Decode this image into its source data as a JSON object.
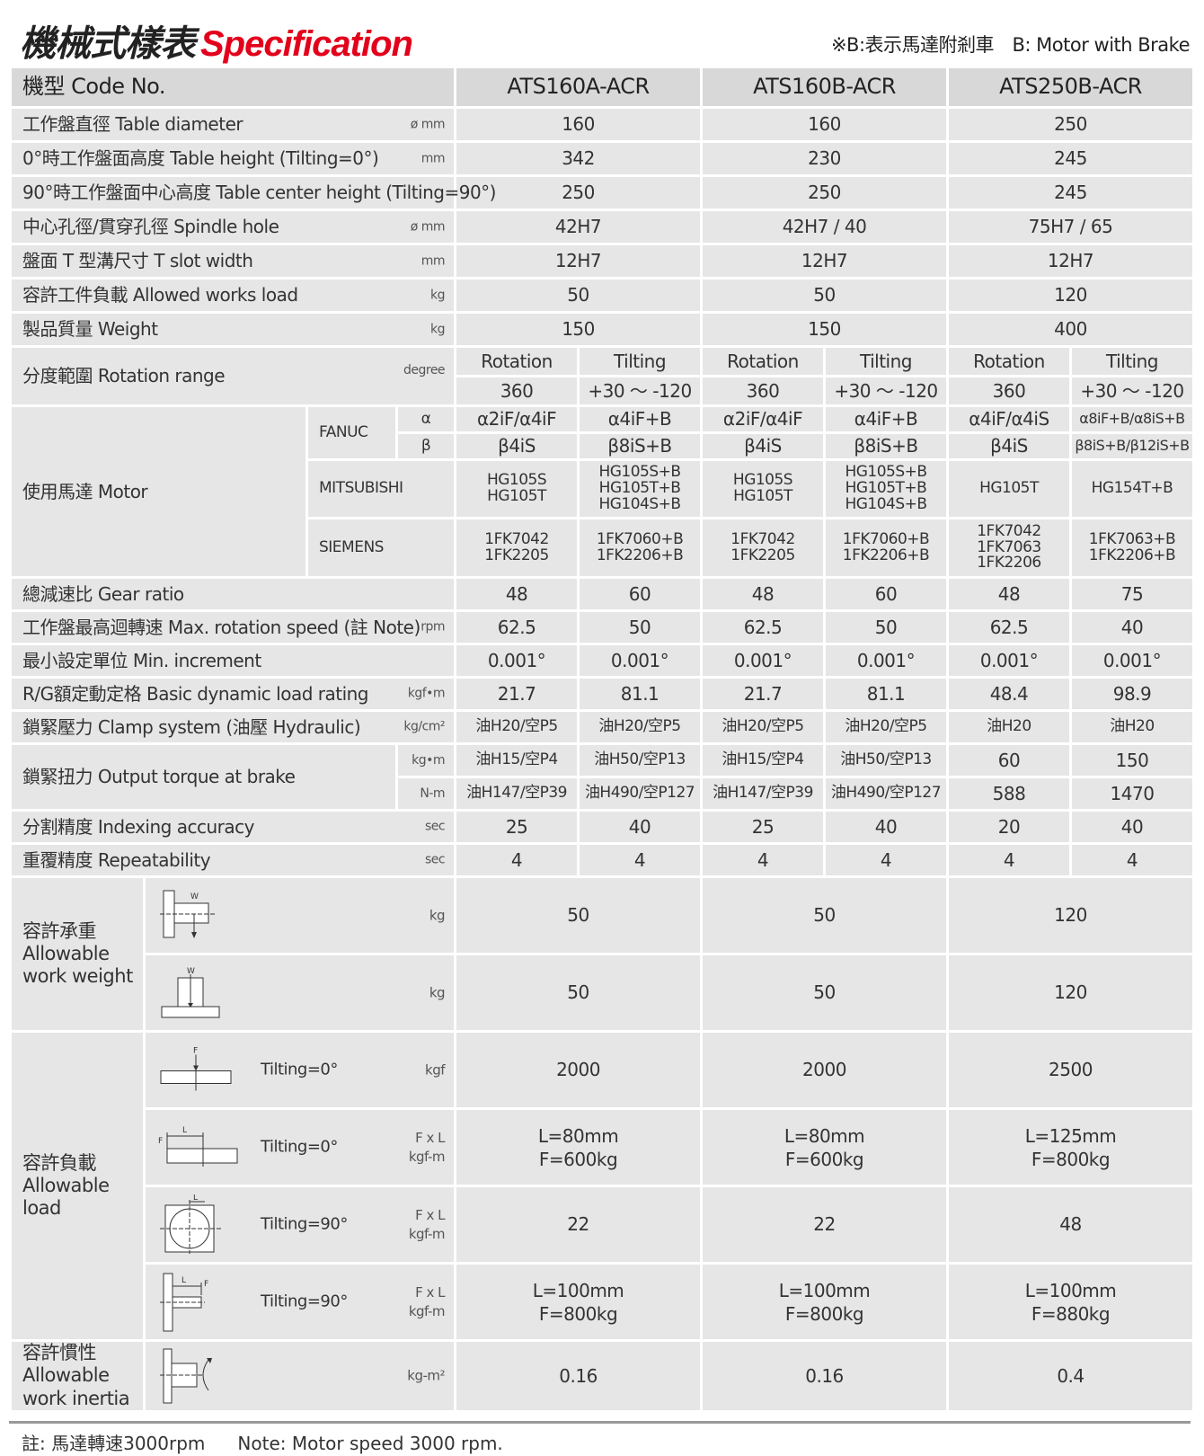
{
  "title": {
    "zh": "機械式樣表",
    "en": "Specification"
  },
  "brake_note": "※B:表示馬達附剎車　B: Motor with Brake",
  "colors": {
    "accent": "#e3001b",
    "cell_bg": "#e6e6e7",
    "header_bg": "#d8d8d9"
  },
  "header": {
    "label": "機型 Code No.",
    "models": [
      "ATS160A-ACR",
      "ATS160B-ACR",
      "ATS250B-ACR"
    ]
  },
  "rows": [
    {
      "label": "工作盤直徑 Table diameter",
      "unit": "ø mm",
      "values": [
        "160",
        "160",
        "250"
      ]
    },
    {
      "label": "0°時工作盤面高度 Table height (Tilting=0°)",
      "unit": "mm",
      "values": [
        "342",
        "230",
        "245"
      ]
    },
    {
      "label": "90°時工作盤面中心高度 Table center height (Tilting=90°)",
      "unit": "",
      "values": [
        "250",
        "250",
        "245"
      ]
    },
    {
      "label": "中心孔徑/貫穿孔徑 Spindle hole",
      "unit": "ø mm",
      "values": [
        "42H7",
        "42H7 / 40",
        "75H7 / 65"
      ]
    },
    {
      "label": "盤面 T 型溝尺寸 T slot width",
      "unit": "mm",
      "values": [
        "12H7",
        "12H7",
        "12H7"
      ]
    },
    {
      "label": "容許工件負載 Allowed works load",
      "unit": "kg",
      "values": [
        "50",
        "50",
        "120"
      ]
    },
    {
      "label": "製品質量 Weight",
      "unit": "kg",
      "values": [
        "150",
        "150",
        "400"
      ]
    }
  ],
  "rotation": {
    "label": "分度範圍 Rotation range",
    "unit": "degree",
    "heads": [
      "Rotation",
      "Tilting",
      "Rotation",
      "Tilting",
      "Rotation",
      "Tilting"
    ],
    "values": [
      "360",
      "+30 ～ -120",
      "360",
      "+30 ～ -120",
      "360",
      "+30 ～ -120"
    ]
  },
  "motor": {
    "label": "使用馬達  Motor",
    "fanuc": {
      "brand": "FANUC",
      "alpha": "α",
      "beta": "β",
      "alpha_values": [
        "α2iF/α4iF",
        "α4iF+B",
        "α2iF/α4iF",
        "α4iF+B",
        "α4iF/α4iS",
        "α8iF+B/α8iS+B"
      ],
      "beta_values": [
        "β4iS",
        "β8iS+B",
        "β4iS",
        "β8iS+B",
        "β4iS",
        "β8iS+B/β12iS+B"
      ]
    },
    "mitsubishi": {
      "brand": "MITSUBISHI",
      "values": [
        [
          "HG105S",
          "HG105T"
        ],
        [
          "HG105S+B",
          "HG105T+B",
          "HG104S+B"
        ],
        [
          "HG105S",
          "HG105T"
        ],
        [
          "HG105S+B",
          "HG105T+B",
          "HG104S+B"
        ],
        [
          "HG105T"
        ],
        [
          "HG154T+B"
        ]
      ]
    },
    "siemens": {
      "brand": "SIEMENS",
      "values": [
        [
          "1FK7042",
          "1FK2205"
        ],
        [
          "1FK7060+B",
          "1FK2206+B"
        ],
        [
          "1FK7042",
          "1FK2205"
        ],
        [
          "1FK7060+B",
          "1FK2206+B"
        ],
        [
          "1FK7042",
          "1FK7063",
          "1FK2206"
        ],
        [
          "1FK7063+B",
          "1FK2206+B"
        ]
      ]
    }
  },
  "rows6": [
    {
      "label": "總減速比 Gear ratio",
      "unit": "",
      "values": [
        "48",
        "60",
        "48",
        "60",
        "48",
        "75"
      ]
    },
    {
      "label": "工作盤最高迴轉速 Max. rotation speed (註 Note)",
      "unit": "rpm",
      "values": [
        "62.5",
        "50",
        "62.5",
        "50",
        "62.5",
        "40"
      ]
    },
    {
      "label": "最小設定單位 Min. increment",
      "unit": "",
      "values": [
        "0.001°",
        "0.001°",
        "0.001°",
        "0.001°",
        "0.001°",
        "0.001°"
      ]
    },
    {
      "label": "R/G額定動定格 Basic dynamic load rating",
      "unit": "kgf•m",
      "values": [
        "21.7",
        "81.1",
        "21.7",
        "81.1",
        "48.4",
        "98.9"
      ]
    },
    {
      "label": "鎖緊壓力 Clamp system (油壓 Hydraulic)",
      "unit": "kg/cm²",
      "values": [
        "油H20/空P5",
        "油H20/空P5",
        "油H20/空P5",
        "油H20/空P5",
        "油H20",
        "油H20"
      ]
    }
  ],
  "torque": {
    "label": "鎖緊扭力 Output torque at brake",
    "unit1": "kg•m",
    "unit2": "N-m",
    "values1": [
      "油H15/空P4",
      "油H50/空P13",
      "油H15/空P4",
      "油H50/空P13",
      "60",
      "150"
    ],
    "values2": [
      "油H147/空P39",
      "油H490/空P127",
      "油H147/空P39",
      "油H490/空P127",
      "588",
      "1470"
    ]
  },
  "rows6b": [
    {
      "label": "分割精度 Indexing accuracy",
      "unit": "sec",
      "values": [
        "25",
        "40",
        "25",
        "40",
        "20",
        "40"
      ]
    },
    {
      "label": "重覆精度 Repeatability",
      "unit": "sec",
      "values": [
        "4",
        "4",
        "4",
        "4",
        "4",
        "4"
      ]
    }
  ],
  "work_weight": {
    "label_zh": "容許承重",
    "label_en1": "Allowable",
    "label_en2": "work weight",
    "w": "W",
    "rows": [
      {
        "unit": "kg",
        "values": [
          "50",
          "50",
          "120"
        ]
      },
      {
        "unit": "kg",
        "values": [
          "50",
          "50",
          "120"
        ]
      }
    ]
  },
  "allow_load": {
    "label_zh": "容許負載",
    "label_en1": "Allowable",
    "label_en2": "load",
    "f": "F",
    "l": "L",
    "rows": [
      {
        "tilting": "Tilting=0°",
        "unit1": "kgf",
        "unit2": "",
        "values": [
          [
            "2000"
          ],
          [
            "2000"
          ],
          [
            "2500"
          ]
        ]
      },
      {
        "tilting": "Tilting=0°",
        "unit1": "F x L",
        "unit2": "kgf-m",
        "values": [
          [
            "L=80mm",
            "F=600kg"
          ],
          [
            "L=80mm",
            "F=600kg"
          ],
          [
            "L=125mm",
            "F=800kg"
          ]
        ]
      },
      {
        "tilting": "Tilting=90°",
        "unit1": "F x L",
        "unit2": "kgf-m",
        "values": [
          [
            "22"
          ],
          [
            "22"
          ],
          [
            "48"
          ]
        ]
      },
      {
        "tilting": "Tilting=90°",
        "unit1": "F x L",
        "unit2": "kgf-m",
        "values": [
          [
            "L=100mm",
            "F=800kg"
          ],
          [
            "L=100mm",
            "F=800kg"
          ],
          [
            "L=100mm",
            "F=880kg"
          ]
        ]
      }
    ]
  },
  "inertia": {
    "label_zh": "容許慣性",
    "label_en1": "Allowable",
    "label_en2": "work inertia",
    "unit": "kg-m²",
    "values": [
      "0.16",
      "0.16",
      "0.4"
    ]
  },
  "footnote": {
    "zh": "註: 馬達轉速3000rpm",
    "en": "Note: Motor speed 3000 rpm."
  }
}
